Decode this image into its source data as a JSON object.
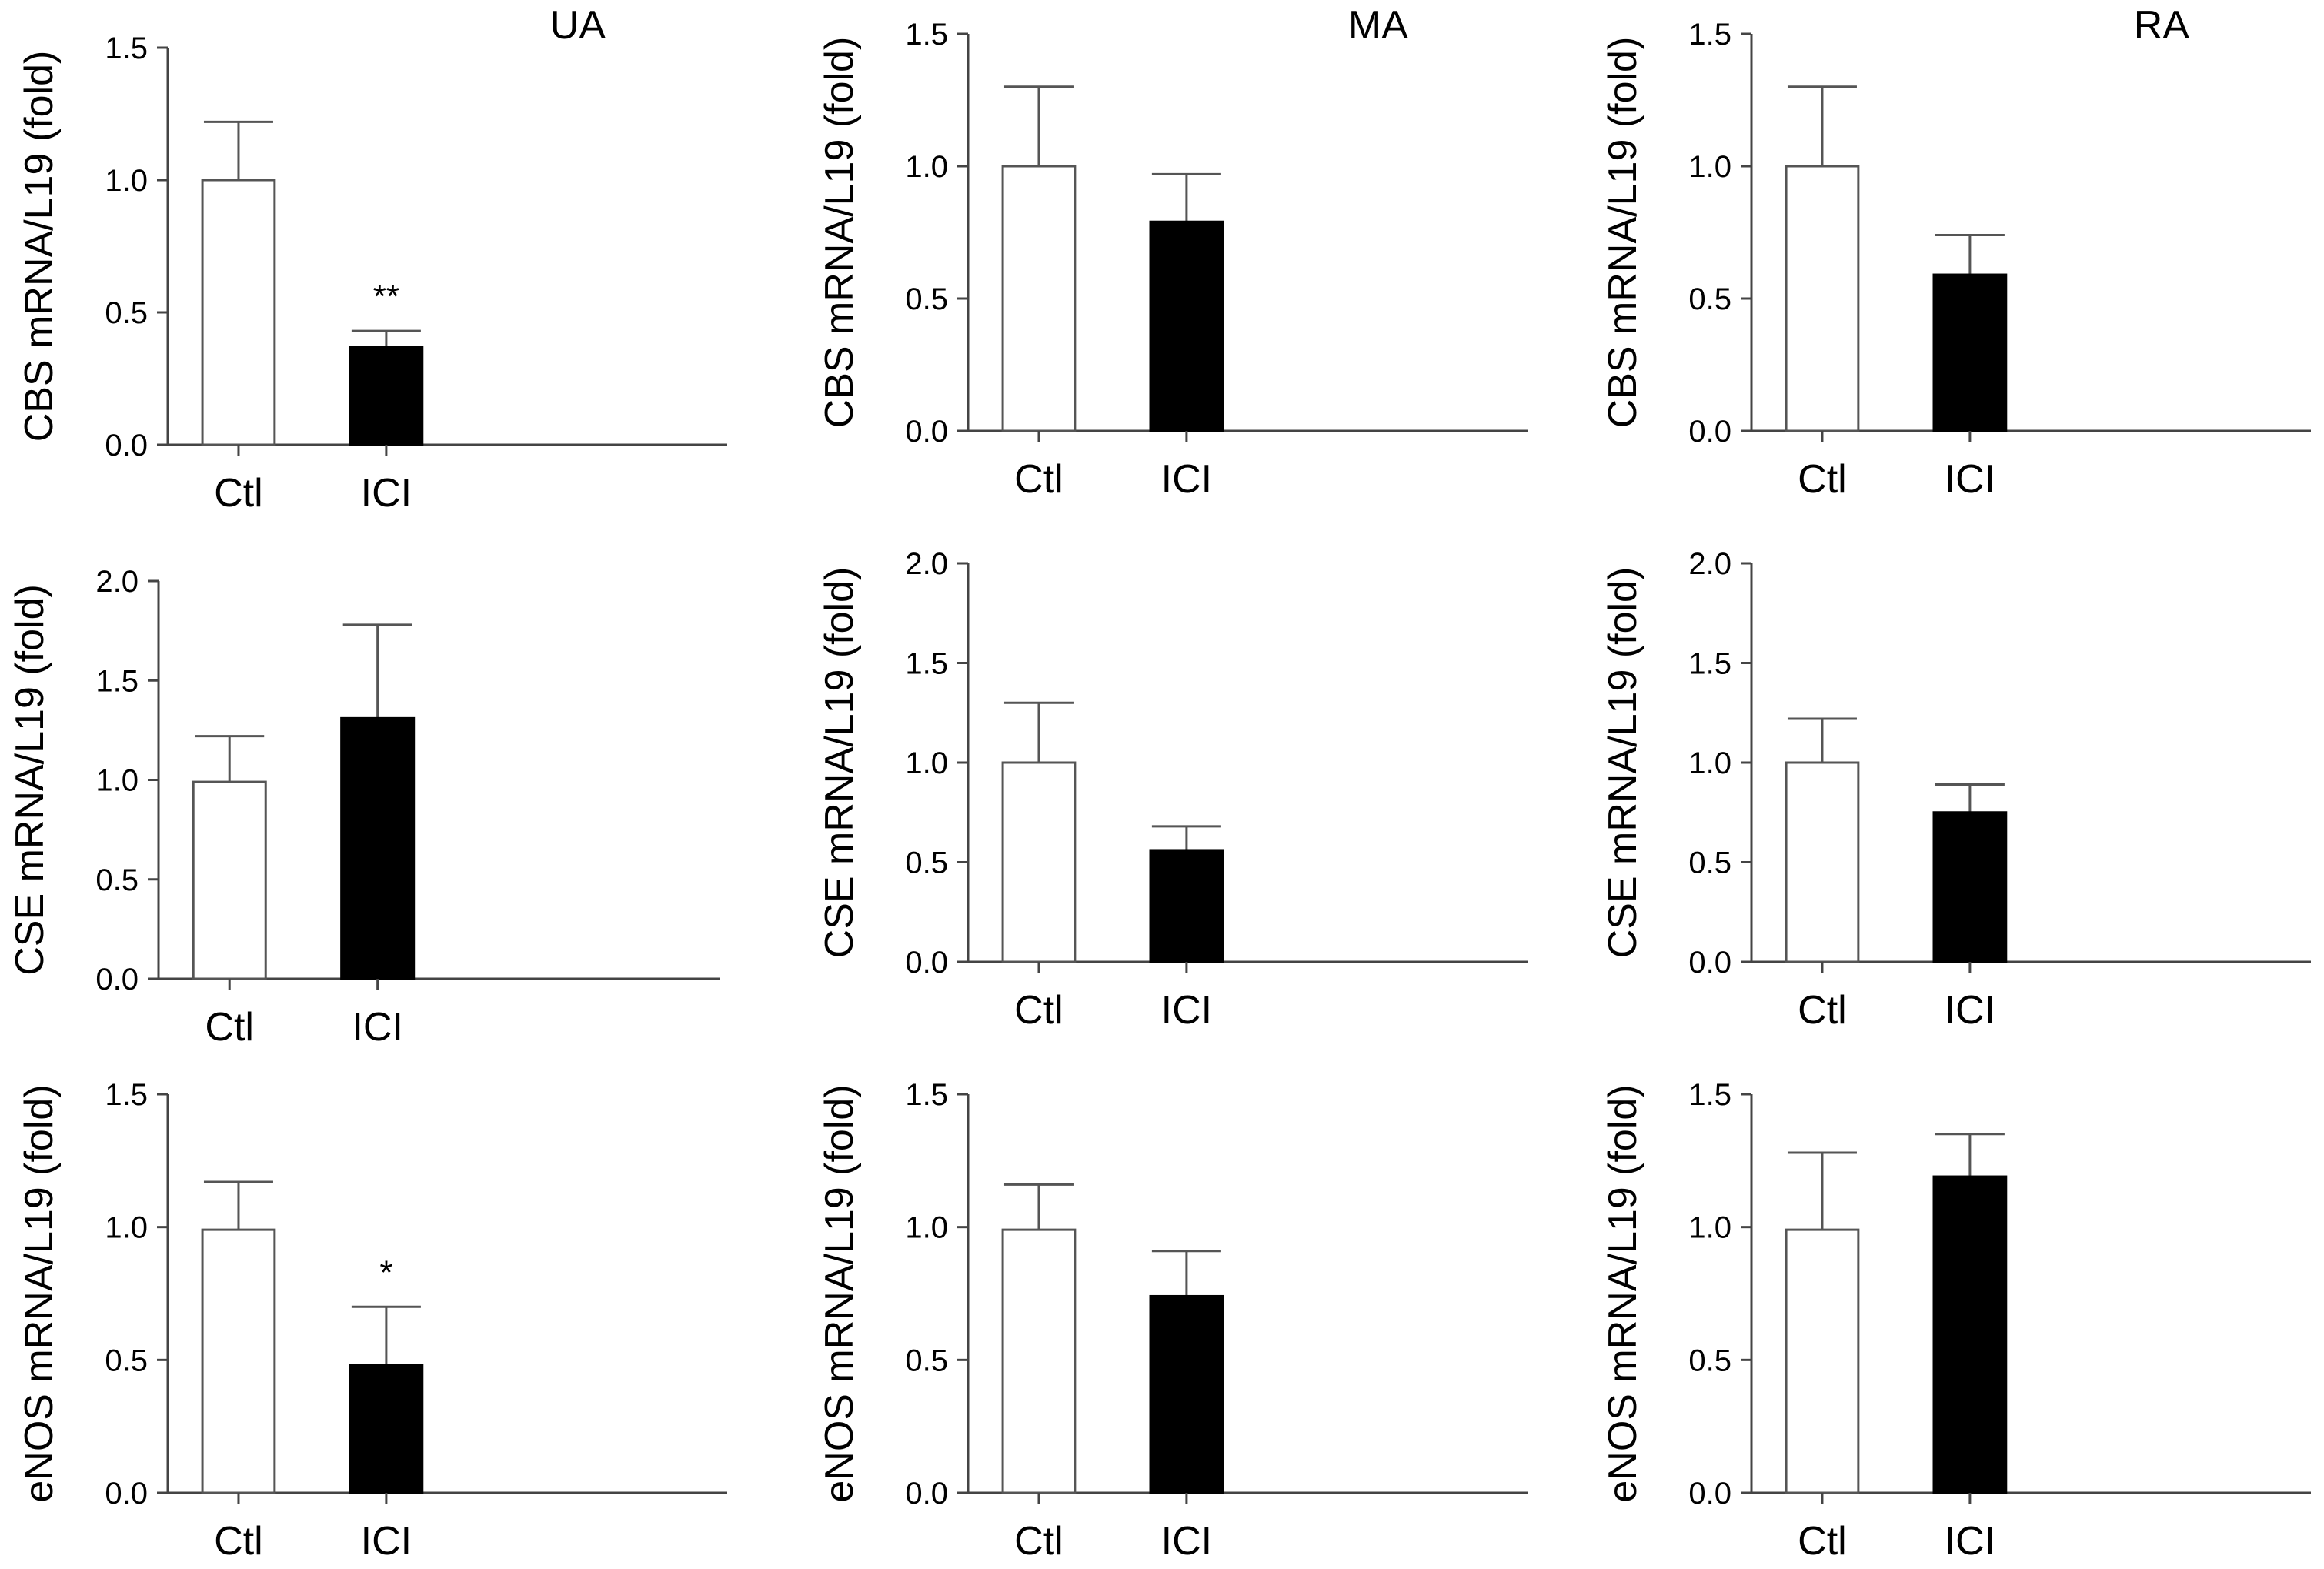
{
  "figure": {
    "colors": {
      "control_fill": "#ffffff",
      "treatment_fill": "#000000",
      "axis": "#444444",
      "bar_edge": "#555555"
    }
  },
  "chart_data": [
    {
      "id": "ua-cbs",
      "type": "bar",
      "title": "UA",
      "ylabel": "CBS mRNA/L19 (fold)",
      "categories": [
        "Ctl",
        "ICI"
      ],
      "values": [
        1.0,
        0.37
      ],
      "errors": [
        0.22,
        0.06
      ],
      "ylim": [
        0,
        1.5
      ],
      "yticks": [
        "0.0",
        "0.5",
        "1.0",
        "1.5"
      ],
      "annotations": [
        "",
        "**"
      ]
    },
    {
      "id": "ma-cbs",
      "type": "bar",
      "title": "MA",
      "ylabel": "CBS mRNA/L19 (fold)",
      "categories": [
        "Ctl",
        "ICI"
      ],
      "values": [
        1.0,
        0.79
      ],
      "errors": [
        0.3,
        0.18
      ],
      "ylim": [
        0,
        1.5
      ],
      "yticks": [
        "0.0",
        "0.5",
        "1.0",
        "1.5"
      ],
      "annotations": [
        "",
        ""
      ]
    },
    {
      "id": "ra-cbs",
      "type": "bar",
      "title": "RA",
      "ylabel": "CBS mRNA/L19 (fold)",
      "categories": [
        "Ctl",
        "ICI"
      ],
      "values": [
        1.0,
        0.59
      ],
      "errors": [
        0.3,
        0.15
      ],
      "ylim": [
        0,
        1.5
      ],
      "yticks": [
        "0.0",
        "0.5",
        "1.0",
        "1.5"
      ],
      "annotations": [
        "",
        ""
      ]
    },
    {
      "id": "ua-cse",
      "type": "bar",
      "title": "",
      "ylabel": "CSE mRNA/L19 (fold)",
      "categories": [
        "Ctl",
        "ICI"
      ],
      "values": [
        0.99,
        1.31
      ],
      "errors": [
        0.23,
        0.47
      ],
      "ylim": [
        0,
        2.0
      ],
      "yticks": [
        "0.0",
        "0.5",
        "1.0",
        "1.5",
        "2.0"
      ],
      "annotations": [
        "",
        ""
      ]
    },
    {
      "id": "ma-cse",
      "type": "bar",
      "title": "",
      "ylabel": "CSE mRNA/L19 (fold)",
      "categories": [
        "Ctl",
        "ICI"
      ],
      "values": [
        1.0,
        0.56
      ],
      "errors": [
        0.3,
        0.12
      ],
      "ylim": [
        0,
        2.0
      ],
      "yticks": [
        "0.0",
        "0.5",
        "1.0",
        "1.5",
        "2.0"
      ],
      "annotations": [
        "",
        ""
      ]
    },
    {
      "id": "ra-cse",
      "type": "bar",
      "title": "",
      "ylabel": "CSE mRNA/L19 (fold)",
      "categories": [
        "Ctl",
        "ICI"
      ],
      "values": [
        1.0,
        0.75
      ],
      "errors": [
        0.22,
        0.14
      ],
      "ylim": [
        0,
        2.0
      ],
      "yticks": [
        "0.0",
        "0.5",
        "1.0",
        "1.5",
        "2.0"
      ],
      "annotations": [
        "",
        ""
      ]
    },
    {
      "id": "ua-enos",
      "type": "bar",
      "title": "",
      "ylabel": "eNOS mRNA/L19 (fold)",
      "categories": [
        "Ctl",
        "ICI"
      ],
      "values": [
        0.99,
        0.48
      ],
      "errors": [
        0.18,
        0.22
      ],
      "ylim": [
        0,
        1.5
      ],
      "yticks": [
        "0.0",
        "0.5",
        "1.0",
        "1.5"
      ],
      "annotations": [
        "",
        "*"
      ]
    },
    {
      "id": "ma-enos",
      "type": "bar",
      "title": "",
      "ylabel": "eNOS mRNA/L19 (fold)",
      "categories": [
        "Ctl",
        "ICI"
      ],
      "values": [
        0.99,
        0.74
      ],
      "errors": [
        0.17,
        0.17
      ],
      "ylim": [
        0,
        1.5
      ],
      "yticks": [
        "0.0",
        "0.5",
        "1.0",
        "1.5"
      ],
      "annotations": [
        "",
        ""
      ]
    },
    {
      "id": "ra-enos",
      "type": "bar",
      "title": "",
      "ylabel": "eNOS mRNA/L19 (fold)",
      "categories": [
        "Ctl",
        "ICI"
      ],
      "values": [
        0.99,
        1.19
      ],
      "errors": [
        0.29,
        0.16
      ],
      "ylim": [
        0,
        1.5
      ],
      "yticks": [
        "0.0",
        "0.5",
        "1.0",
        "1.5"
      ],
      "annotations": [
        "",
        ""
      ]
    }
  ]
}
